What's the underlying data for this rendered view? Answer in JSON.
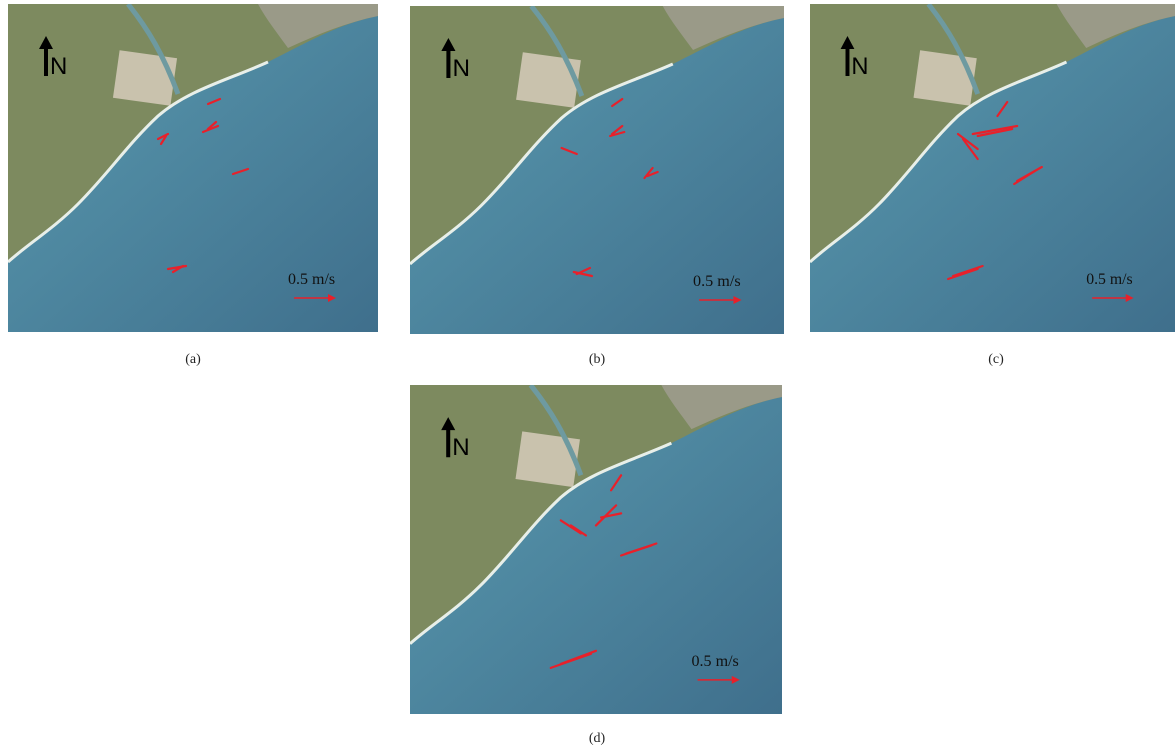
{
  "panels": [
    {
      "caption": "(a)",
      "north_label": "N",
      "scale_label": "0.5 m/s"
    },
    {
      "caption": "(b)",
      "north_label": "N",
      "scale_label": "0.5 m/s"
    },
    {
      "caption": "(c)",
      "north_label": "N",
      "scale_label": "0.5 m/s"
    },
    {
      "caption": "(d)",
      "north_label": "N",
      "scale_label": "0.5 m/s"
    }
  ]
}
